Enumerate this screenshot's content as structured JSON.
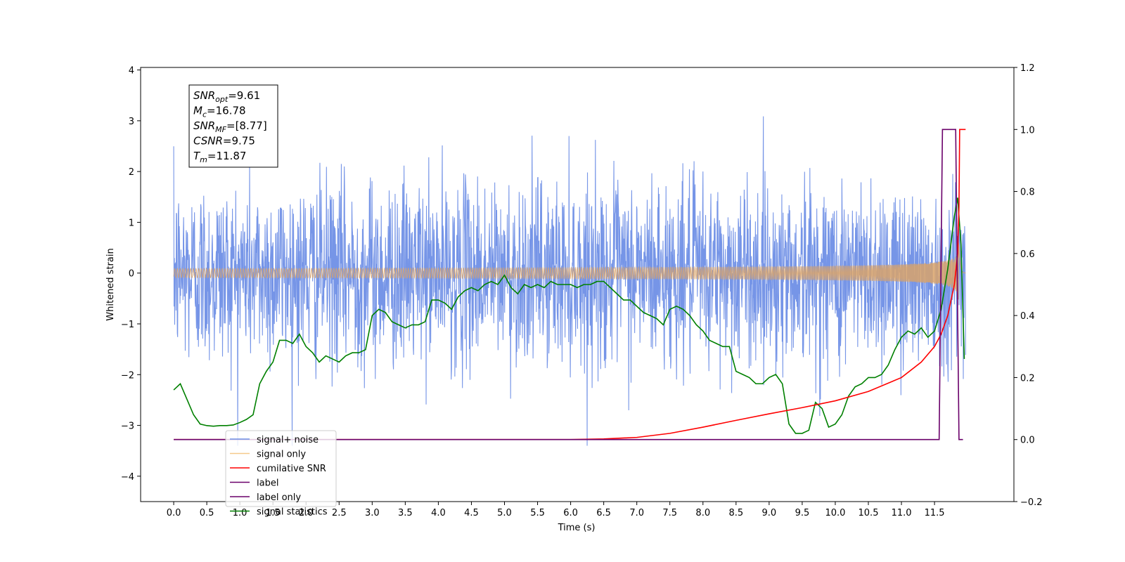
{
  "chart_data": {
    "type": "line",
    "xlabel": "Time (s)",
    "ylabel_left": "Whitened strain",
    "x_ticks": [
      "0.0",
      "0.5",
      "1.0",
      "1.5",
      "2.0",
      "2.5",
      "3.0",
      "3.5",
      "4.0",
      "4.5",
      "5.0",
      "5.5",
      "6.0",
      "6.5",
      "7.0",
      "7.5",
      "8.0",
      "8.5",
      "9.0",
      "9.5",
      "10.0",
      "10.5",
      "11.0",
      "11.5"
    ],
    "xlim": [
      -0.5,
      12.7
    ],
    "ylim_left": [
      -4.5,
      4.05
    ],
    "ylim_right": [
      -0.2,
      1.2
    ],
    "y_ticks_left": [
      "−4",
      "−3",
      "−2",
      "−1",
      "0",
      "1",
      "2",
      "3",
      "4"
    ],
    "y_ticks_right": [
      "−0.2",
      "0.0",
      "0.2",
      "0.4",
      "0.6",
      "0.8",
      "1.0",
      "1.2"
    ],
    "annotation": {
      "lines": [
        {
          "sym": "SNR",
          "sub": "opt",
          "val": "=9.61"
        },
        {
          "sym": "M",
          "sub": "c",
          "val": "=16.78"
        },
        {
          "sym": "SNR",
          "sub": "MF",
          "val": "=[8.77]"
        },
        {
          "sym": "CSNR",
          "sub": "",
          "val": "=9.75"
        },
        {
          "sym": "T",
          "sub": "m",
          "val": "=11.87"
        }
      ]
    },
    "legend": {
      "position": "lower-left",
      "entries": [
        {
          "label": "signal+ noise",
          "color": "#6f8fe6"
        },
        {
          "label": "signal only",
          "color": "#f5c98a"
        },
        {
          "label": "cumilative SNR",
          "color": "#ff0000"
        },
        {
          "label": "label",
          "color": "#6a006a"
        },
        {
          "label": "label only",
          "color": "#6a006a"
        },
        {
          "label": "signal statistics",
          "color": "#008000"
        }
      ]
    },
    "series": [
      {
        "name": "signal+ noise",
        "axis": "left",
        "color": "#6f8fe6",
        "description_values": {
          "noise_std": 0.9,
          "x_start": 0.0,
          "x_end": 11.97
        }
      },
      {
        "name": "signal only",
        "axis": "left",
        "color": "#f5c98a",
        "chirp": {
          "merger_time": 11.87,
          "peak_amplitude": 1.2,
          "end_time": 11.97
        }
      },
      {
        "name": "cumilative SNR",
        "axis": "right",
        "color": "#ff0000",
        "x": [
          0.0,
          6.0,
          6.5,
          7.0,
          7.5,
          8.0,
          8.5,
          9.0,
          9.5,
          10.0,
          10.5,
          11.0,
          11.3,
          11.5,
          11.6,
          11.7,
          11.8,
          11.85,
          11.87,
          11.88,
          11.97
        ],
        "y": [
          0.0,
          0.0,
          0.002,
          0.007,
          0.02,
          0.04,
          0.062,
          0.083,
          0.103,
          0.125,
          0.155,
          0.2,
          0.25,
          0.3,
          0.34,
          0.4,
          0.5,
          0.6,
          0.75,
          1.0,
          1.0
        ]
      },
      {
        "name": "label",
        "axis": "right",
        "color": "#6a006a",
        "x": [
          0.0,
          11.57,
          11.62,
          11.82,
          11.87,
          11.93
        ],
        "y": [
          0.0,
          0.0,
          1.0,
          1.0,
          0.0,
          0.0
        ]
      },
      {
        "name": "signal statistics",
        "axis": "right",
        "color": "#008000",
        "x": [
          0.0,
          0.05,
          0.1,
          0.2,
          0.3,
          0.4,
          0.5,
          0.6,
          0.7,
          0.8,
          0.9,
          1.0,
          1.1,
          1.2,
          1.3,
          1.4,
          1.5,
          1.6,
          1.7,
          1.8,
          1.9,
          2.0,
          2.1,
          2.2,
          2.3,
          2.4,
          2.5,
          2.6,
          2.7,
          2.8,
          2.9,
          3.0,
          3.1,
          3.2,
          3.3,
          3.4,
          3.5,
          3.6,
          3.7,
          3.8,
          3.9,
          4.0,
          4.1,
          4.2,
          4.3,
          4.4,
          4.5,
          4.6,
          4.7,
          4.8,
          4.9,
          5.0,
          5.1,
          5.2,
          5.3,
          5.4,
          5.5,
          5.6,
          5.7,
          5.8,
          5.9,
          6.0,
          6.1,
          6.2,
          6.3,
          6.4,
          6.5,
          6.6,
          6.7,
          6.8,
          6.9,
          7.0,
          7.1,
          7.2,
          7.3,
          7.4,
          7.5,
          7.6,
          7.7,
          7.8,
          7.9,
          8.0,
          8.1,
          8.2,
          8.3,
          8.4,
          8.5,
          8.6,
          8.7,
          8.8,
          8.9,
          9.0,
          9.1,
          9.2,
          9.3,
          9.4,
          9.5,
          9.6,
          9.7,
          9.8,
          9.9,
          10.0,
          10.1,
          10.2,
          10.3,
          10.4,
          10.5,
          10.6,
          10.7,
          10.8,
          10.9,
          11.0,
          11.1,
          11.2,
          11.3,
          11.4,
          11.5,
          11.6,
          11.7,
          11.8,
          11.85,
          11.9,
          11.95
        ],
        "y": [
          0.16,
          0.17,
          0.18,
          0.13,
          0.08,
          0.05,
          0.045,
          0.043,
          0.045,
          0.045,
          0.047,
          0.055,
          0.065,
          0.08,
          0.18,
          0.22,
          0.25,
          0.32,
          0.32,
          0.31,
          0.34,
          0.3,
          0.28,
          0.25,
          0.27,
          0.26,
          0.25,
          0.27,
          0.28,
          0.28,
          0.29,
          0.4,
          0.42,
          0.41,
          0.38,
          0.37,
          0.36,
          0.37,
          0.37,
          0.38,
          0.45,
          0.45,
          0.44,
          0.42,
          0.46,
          0.48,
          0.49,
          0.48,
          0.5,
          0.51,
          0.5,
          0.53,
          0.49,
          0.47,
          0.5,
          0.49,
          0.5,
          0.49,
          0.51,
          0.5,
          0.5,
          0.5,
          0.49,
          0.5,
          0.5,
          0.51,
          0.51,
          0.49,
          0.47,
          0.45,
          0.45,
          0.43,
          0.41,
          0.4,
          0.39,
          0.37,
          0.42,
          0.43,
          0.42,
          0.4,
          0.37,
          0.35,
          0.32,
          0.31,
          0.3,
          0.3,
          0.22,
          0.21,
          0.2,
          0.18,
          0.18,
          0.2,
          0.21,
          0.18,
          0.05,
          0.02,
          0.02,
          0.03,
          0.12,
          0.1,
          0.04,
          0.05,
          0.08,
          0.14,
          0.17,
          0.18,
          0.2,
          0.2,
          0.21,
          0.24,
          0.29,
          0.33,
          0.35,
          0.34,
          0.36,
          0.33,
          0.35,
          0.42,
          0.55,
          0.72,
          0.78,
          0.63,
          0.26
        ]
      }
    ]
  }
}
